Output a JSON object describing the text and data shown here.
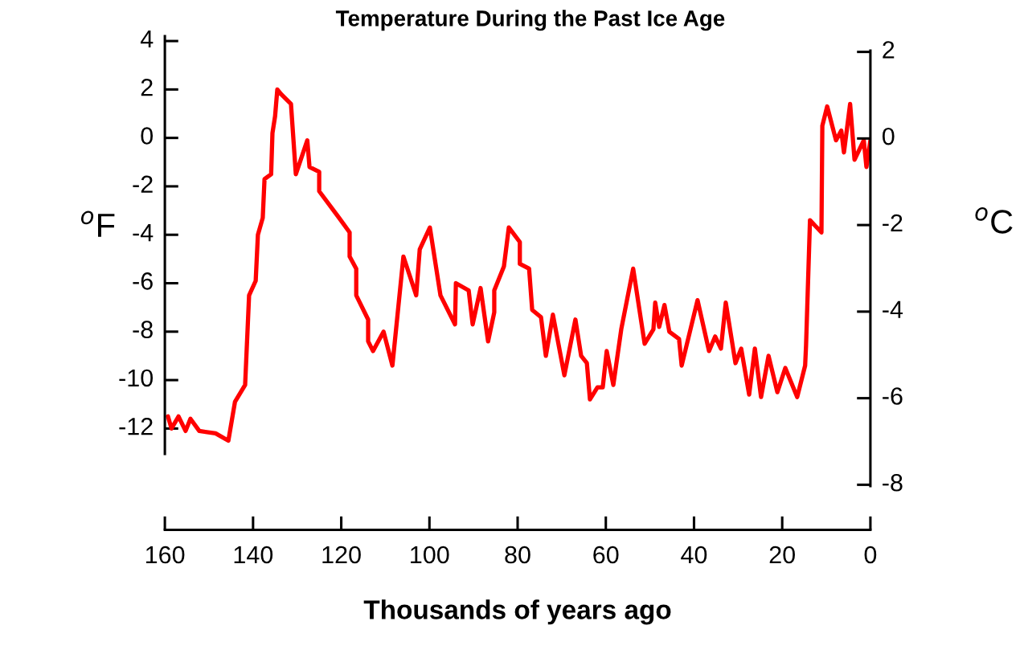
{
  "chart_data": {
    "type": "line",
    "title": "Temperature During the Past Ice Age",
    "xlabel": "Thousands of years ago",
    "ylabel": "$^{o}$F",
    "y2label": "$^{o}$C",
    "xlim": [
      160,
      0
    ],
    "xticks": [
      0,
      20,
      40,
      60,
      80,
      100,
      120,
      140,
      160
    ],
    "ylim": [
      -13.05,
      4.2
    ],
    "yticks": [
      -12,
      -10,
      -8,
      -6,
      -4,
      -2,
      0,
      2,
      4
    ],
    "y2lim": [
      -8.03,
      2.03
    ],
    "y2ticks": [
      -8,
      -6,
      -4,
      -2,
      0,
      2
    ],
    "grid": false,
    "legend": false,
    "marker": "none",
    "line_style": "solid",
    "series": [
      {
        "color": "#ff0000",
        "x": [
          159.3,
          158.5,
          156.9,
          155.3,
          154.2,
          152.2,
          148.5,
          145.6,
          144.1,
          141.8,
          140.9,
          139.4,
          138.9,
          137.8,
          137.4,
          135.9,
          135.6,
          135.0,
          134.5,
          133.6,
          131.4,
          130.3,
          127.7,
          127.2,
          125.0,
          125.0,
          120.5,
          118.1,
          118.1,
          116.6,
          116.6,
          113.9,
          113.9,
          112.8,
          110.4,
          108.4,
          105.9,
          103.0,
          102.2,
          99.9,
          97.5,
          94.2,
          94.0,
          91.1,
          90.2,
          88.4,
          86.7,
          85.3,
          85.3,
          83.1,
          82.0,
          79.5,
          79.5,
          77.4,
          76.7,
          74.7,
          73.6,
          72.0,
          69.4,
          66.9,
          65.6,
          64.3,
          63.6,
          61.9,
          60.7,
          59.8,
          58.3,
          56.5,
          55.2,
          53.8,
          51.2,
          49.2,
          48.8,
          47.9,
          46.7,
          45.6,
          43.4,
          42.8,
          39.2,
          36.6,
          35.2,
          33.9,
          32.8,
          30.6,
          29.3,
          27.5,
          26.2,
          24.8,
          23.1,
          21.1,
          19.3,
          16.6,
          14.8,
          14.6,
          13.7,
          11.1,
          10.9,
          9.8,
          7.8,
          6.6,
          6.0,
          4.6,
          3.6,
          1.5,
          0.9,
          0.0
        ],
        "values": [
          -11.5,
          -12.0,
          -11.5,
          -12.1,
          -11.6,
          -12.1,
          -12.2,
          -12.5,
          -10.9,
          -10.2,
          -6.5,
          -5.9,
          -4.0,
          -3.3,
          -1.7,
          -1.5,
          0.2,
          0.9,
          2.0,
          1.8,
          1.4,
          -1.5,
          -0.1,
          -1.2,
          -1.4,
          -2.2,
          -3.3,
          -3.9,
          -4.9,
          -5.4,
          -6.5,
          -7.5,
          -8.4,
          -8.8,
          -8.0,
          -9.4,
          -4.9,
          -6.5,
          -4.6,
          -3.7,
          -6.5,
          -7.7,
          -6.0,
          -6.3,
          -7.7,
          -6.2,
          -8.4,
          -7.2,
          -6.3,
          -5.3,
          -3.7,
          -4.3,
          -5.2,
          -5.4,
          -7.1,
          -7.4,
          -9.0,
          -7.3,
          -9.8,
          -7.5,
          -9.0,
          -9.3,
          -10.8,
          -10.3,
          -10.3,
          -8.8,
          -10.2,
          -7.9,
          -6.7,
          -5.4,
          -8.5,
          -7.9,
          -6.8,
          -7.8,
          -6.9,
          -8.0,
          -8.3,
          -9.4,
          -6.7,
          -8.8,
          -8.2,
          -8.7,
          -6.8,
          -9.3,
          -8.7,
          -10.6,
          -8.7,
          -10.7,
          -9.0,
          -10.5,
          -9.5,
          -10.7,
          -9.4,
          -8.6,
          -3.4,
          -3.9,
          0.5,
          1.3,
          -0.1,
          0.3,
          -0.6,
          1.4,
          -0.9,
          -0.1,
          -1.2,
          -0.1
        ]
      }
    ]
  }
}
